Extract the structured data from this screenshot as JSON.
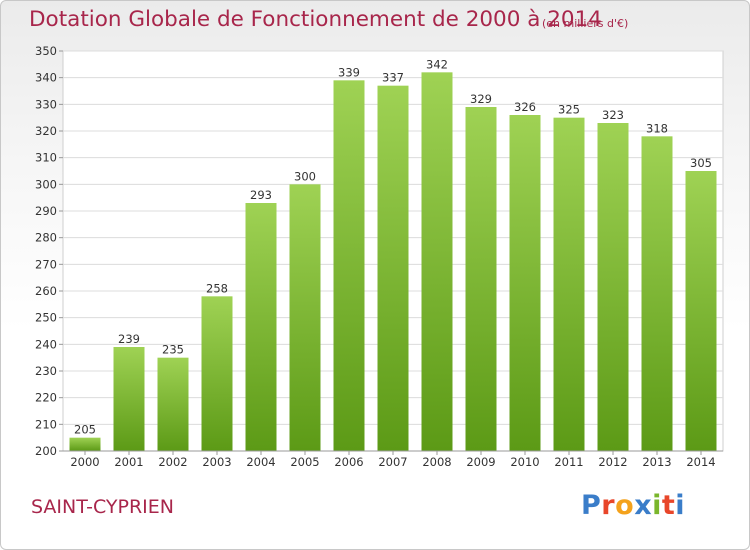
{
  "header": {
    "title": "Dotation Globale de Fonctionnement de 2000 à 2014",
    "unit": "(en milliers d'€)"
  },
  "footer": {
    "commune": "SAINT-CYPRIEN",
    "logo_text": "Proxiti",
    "logo_colors": [
      "#3a7dc9",
      "#e8462a",
      "#f4a21c",
      "#3a7dc9",
      "#7ab62c",
      "#e8462a",
      "#3a7dc9"
    ]
  },
  "chart_data": {
    "type": "bar",
    "categories": [
      "2000",
      "2001",
      "2002",
      "2003",
      "2004",
      "2005",
      "2006",
      "2007",
      "2008",
      "2009",
      "2010",
      "2011",
      "2012",
      "2013",
      "2014"
    ],
    "values": [
      205,
      239,
      235,
      258,
      293,
      300,
      339,
      337,
      342,
      329,
      326,
      325,
      323,
      318,
      305
    ],
    "ylim": [
      200,
      350
    ],
    "ytick_step": 10,
    "grid": true,
    "bar_color_light": "#9fd254",
    "bar_color_dark": "#5c9a16",
    "title": "Dotation Globale de Fonctionnement de 2000 à 2014",
    "xlabel": "",
    "ylabel": ""
  }
}
